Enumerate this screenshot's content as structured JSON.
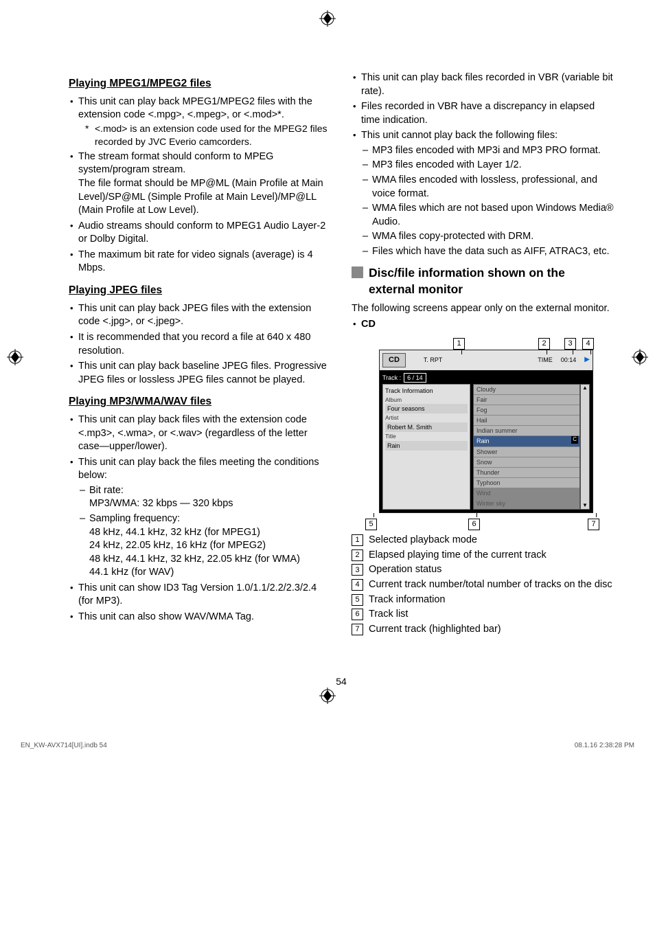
{
  "sections": {
    "mpeg": {
      "heading": "Playing MPEG1/MPEG2 files",
      "b1": "This unit can play back MPEG1/MPEG2 files with the extension code <.mpg>, <.mpeg>, or <.mod>*.",
      "star": "<.mod> is an extension code used for the MPEG2 files recorded by JVC Everio camcorders.",
      "b2": "The stream format should conform to MPEG system/program stream.",
      "b2cont": "The file format should be MP@ML (Main Profile at Main Level)/SP@ML (Simple Profile at Main Level)/MP@LL (Main Profile at Low Level).",
      "b3": "Audio streams should conform to MPEG1 Audio Layer-2 or Dolby Digital.",
      "b4": "The maximum bit rate for video signals (average) is 4 Mbps."
    },
    "jpeg": {
      "heading": "Playing JPEG files",
      "b1": "This unit can play back JPEG files with the extension code <.jpg>, or <.jpeg>.",
      "b2": "It is recommended that you record a file at 640 x 480 resolution.",
      "b3": "This unit can play back baseline JPEG files. Progressive JPEG files or lossless JPEG files cannot be played."
    },
    "mp3": {
      "heading": "Playing MP3/WMA/WAV files",
      "b1": "This unit can play back files with the extension code <.mp3>, <.wma>, or <.wav> (regardless of the letter case—upper/lower).",
      "b2": "This unit can play back the files meeting the conditions below:",
      "bitrate_label": "Bit rate:",
      "bitrate_val": "MP3/WMA: 32 kbps — 320 kbps",
      "samp_label": "Sampling frequency:",
      "samp1": "48 kHz, 44.1 kHz, 32 kHz (for MPEG1)",
      "samp2": "24 kHz, 22.05 kHz, 16 kHz (for MPEG2)",
      "samp3": "48 kHz, 44.1 kHz, 32 kHz, 22.05 kHz (for WMA)",
      "samp4": "44.1 kHz (for WAV)",
      "b3": "This unit can show ID3 Tag Version 1.0/1.1/2.2/2.3/2.4 (for MP3).",
      "b4": "This unit can also show WAV/WMA Tag.",
      "b5": "This unit can play back files recorded in VBR (variable bit rate).",
      "b6": "Files recorded in VBR have a discrepancy in elapsed time indication.",
      "b7": "This unit cannot play back the following files:",
      "d1": "MP3 files encoded with MP3i and MP3 PRO format.",
      "d2": "MP3 files encoded with Layer 1/2.",
      "d3": "WMA files encoded with lossless, professional, and voice format.",
      "d4": "WMA files which are not based upon Windows Media® Audio.",
      "d5": "WMA files copy-protected with DRM.",
      "d6": "Files which have the data such as AIFF, ATRAC3, etc."
    },
    "discinfo": {
      "heading": "Disc/file information shown on the external monitor",
      "intro": "The following screens appear only on the external monitor.",
      "cdlabel": "CD"
    }
  },
  "figure": {
    "cd": "CD",
    "trpt": "T. RPT",
    "time_label": "TIME",
    "time_val": "00:14",
    "track_label": "Track :",
    "track_counter": "6 / 14",
    "ti_header": "Track Information",
    "album_label": "Album",
    "album_val": "Four seasons",
    "artist_label": "Artist",
    "artist_val": "Robert M. Smith",
    "title_label": "Title",
    "title_val": "Rain",
    "tracks": [
      "Cloudy",
      "Fair",
      "Fog",
      "Hail",
      "Indian summer",
      "Rain",
      "Shower",
      "Snow",
      "Thunder",
      "Typhoon",
      "Wind",
      "Winter sky"
    ],
    "selected_index": 5
  },
  "legend": {
    "i1": "Selected playback mode",
    "i2": "Elapsed playing time of the current track",
    "i3": "Operation status",
    "i4": "Current track number/total number of tracks on the disc",
    "i5": "Track information",
    "i6": "Track list",
    "i7": "Current track (highlighted bar)"
  },
  "page_number": "54",
  "footer_left": "EN_KW-AVX714[UI].indb   54",
  "footer_right": "08.1.16   2:38:28 PM"
}
